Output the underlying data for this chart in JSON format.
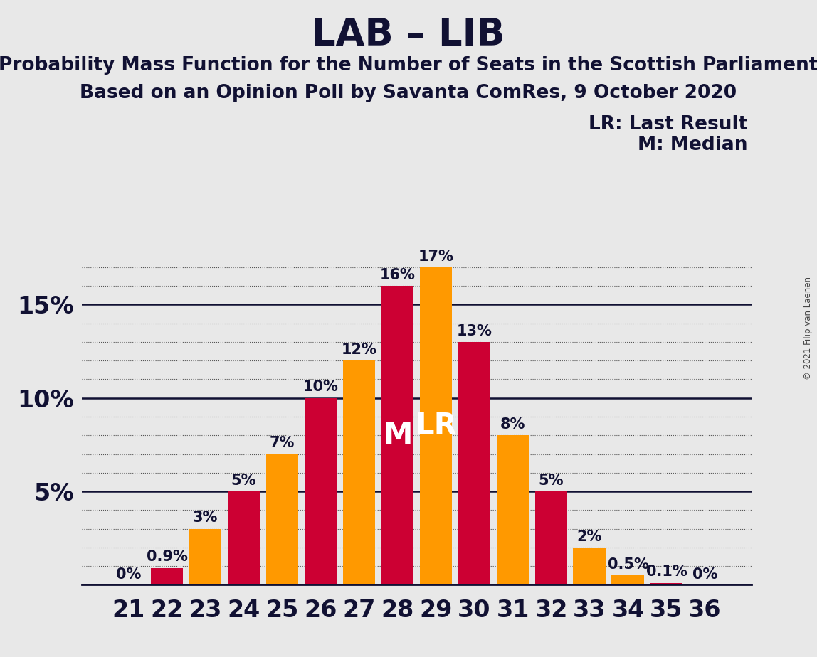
{
  "title": "LAB – LIB",
  "subtitle1": "Probability Mass Function for the Number of Seats in the Scottish Parliament",
  "subtitle2": "Based on an Opinion Poll by Savanta ComRes, 9 October 2020",
  "copyright": "© 2021 Filip van Laenen",
  "legend_lr": "LR: Last Result",
  "legend_m": "M: Median",
  "categories": [
    21,
    22,
    23,
    24,
    25,
    26,
    27,
    28,
    29,
    30,
    31,
    32,
    33,
    34,
    35,
    36
  ],
  "values": [
    0.0,
    0.9,
    3.0,
    5.0,
    7.0,
    10.0,
    12.0,
    16.0,
    17.0,
    13.0,
    8.0,
    5.0,
    2.0,
    0.5,
    0.1,
    0.0
  ],
  "labels": [
    "0%",
    "0.9%",
    "3%",
    "5%",
    "7%",
    "10%",
    "12%",
    "16%",
    "17%",
    "13%",
    "8%",
    "5%",
    "2%",
    "0.5%",
    "0.1%",
    "0%"
  ],
  "colors": [
    "#CC0033",
    "#CC0033",
    "#FF9900",
    "#CC0033",
    "#FF9900",
    "#CC0033",
    "#FF9900",
    "#CC0033",
    "#FF9900",
    "#CC0033",
    "#FF9900",
    "#CC0033",
    "#FF9900",
    "#FF9900",
    "#CC0033",
    "#FF9900"
  ],
  "median_idx": 7,
  "lr_idx": 8,
  "median_label": "M",
  "lr_label": "LR",
  "bar_color_red": "#CC0033",
  "bar_color_orange": "#FF9900",
  "background_color": "#E8E8E8",
  "ylim": [
    0,
    19
  ],
  "title_fontsize": 38,
  "subtitle_fontsize": 19,
  "label_fontsize": 15,
  "tick_fontsize": 24,
  "legend_fontsize": 19,
  "inbar_fontsize": 30
}
